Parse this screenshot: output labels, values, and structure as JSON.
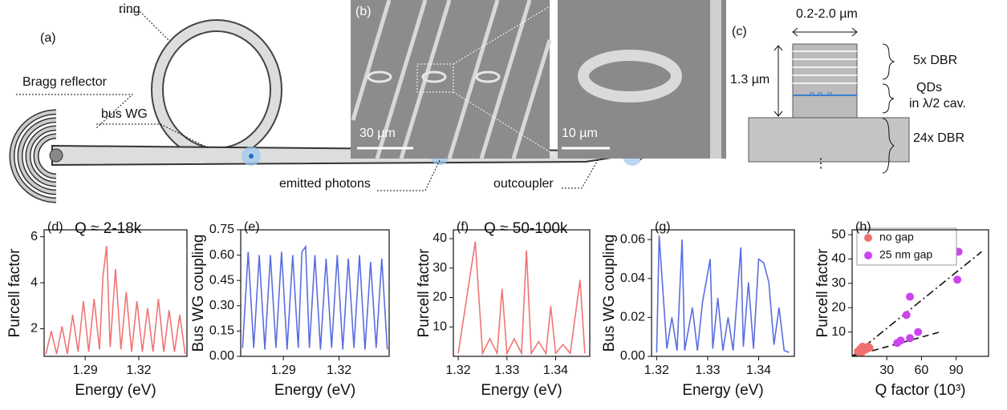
{
  "schematic": {
    "panel_a": "(a)",
    "ring": "ring",
    "bragg": "Bragg reflector",
    "bus": "bus WG",
    "photons": "emitted photons",
    "outcoupler": "outcoupler",
    "panel_b": "(b)",
    "scale1": "30 µm",
    "scale2": "10 µm",
    "panel_c": "(c)",
    "width": "0.2-2.0 µm",
    "height": "1.3 µm",
    "dbr_top": "5x DBR",
    "qds": "QDs",
    "cavity": "in λ/2 cav.",
    "dbr_bottom": "24x DBR",
    "dots": "⋮"
  },
  "chart_data": [
    {
      "type": "line",
      "panel_label": "(d)",
      "annotation": "Q ≈ 2-18k",
      "xlabel": "Energy (eV)",
      "ylabel": "Purcell factor",
      "color": "#f07474",
      "x": [
        1.268,
        1.271,
        1.274,
        1.277,
        1.28,
        1.283,
        1.286,
        1.289,
        1.292,
        1.295,
        1.298,
        1.3,
        1.302,
        1.304,
        1.307,
        1.31,
        1.313,
        1.316,
        1.319,
        1.322,
        1.325,
        1.328,
        1.331,
        1.334,
        1.337,
        1.34,
        1.343,
        1.346
      ],
      "values": [
        0.9,
        1.9,
        0.9,
        2.1,
        0.9,
        2.6,
        1.0,
        3.2,
        1.0,
        3.3,
        1.1,
        4.3,
        5.6,
        1.2,
        4.6,
        1.1,
        3.6,
        1.0,
        3.2,
        1.0,
        2.9,
        1.0,
        3.3,
        1.0,
        2.8,
        1.0,
        2.6,
        0.9
      ],
      "xlim": [
        1.267,
        1.347
      ],
      "xticks": [
        1.29,
        1.32
      ],
      "ylim": [
        0.8,
        6.3
      ],
      "yticks": [
        2,
        4,
        6
      ]
    },
    {
      "type": "line",
      "panel_label": "(e)",
      "xlabel": "Energy (eV)",
      "ylabel": "Bus WG coupling",
      "color": "#5a6ee0",
      "x": [
        1.268,
        1.271,
        1.274,
        1.277,
        1.28,
        1.283,
        1.286,
        1.289,
        1.292,
        1.295,
        1.298,
        1.3,
        1.302,
        1.304,
        1.307,
        1.31,
        1.313,
        1.316,
        1.319,
        1.322,
        1.325,
        1.328,
        1.331,
        1.334,
        1.337,
        1.34,
        1.343,
        1.346
      ],
      "values": [
        0.05,
        0.62,
        0.05,
        0.6,
        0.04,
        0.6,
        0.05,
        0.62,
        0.04,
        0.6,
        0.05,
        0.62,
        0.65,
        0.05,
        0.6,
        0.04,
        0.58,
        0.05,
        0.6,
        0.04,
        0.58,
        0.05,
        0.6,
        0.04,
        0.56,
        0.05,
        0.58,
        0.04
      ],
      "xlim": [
        1.267,
        1.347
      ],
      "xticks": [
        1.29,
        1.32
      ],
      "ylim": [
        0,
        0.75
      ],
      "yticks": [
        {
          "value": 0,
          "label": "0.00"
        },
        0.15,
        {
          "value": 0.3,
          "label": "0.30"
        },
        0.45,
        {
          "value": 0.6,
          "label": "0.60"
        },
        0.75
      ]
    },
    {
      "type": "line",
      "panel_label": "(f)",
      "annotation": "Q ≈ 50-100k",
      "xlabel": "Energy (eV)",
      "ylabel": "Purcell factor",
      "color": "#f07474",
      "x": [
        1.32,
        1.3235,
        1.325,
        1.3265,
        1.328,
        1.329,
        1.33,
        1.3315,
        1.333,
        1.334,
        1.335,
        1.3365,
        1.338,
        1.339,
        1.34,
        1.3415,
        1.343,
        1.345,
        1.346
      ],
      "values": [
        1,
        39,
        1,
        6,
        1,
        23,
        1,
        6,
        1,
        36,
        1,
        5,
        1,
        17,
        1,
        4,
        1,
        26,
        1
      ],
      "xlim": [
        1.319,
        1.347
      ],
      "xticks": [
        1.32,
        1.33,
        1.34
      ],
      "ylim": [
        0,
        43
      ],
      "yticks": [
        10,
        20,
        30,
        40
      ]
    },
    {
      "type": "line",
      "panel_label": "(g)",
      "xlabel": "Energy (eV)",
      "ylabel": "Bus WG coupling",
      "color": "#5a6ee0",
      "x": [
        1.32,
        1.3205,
        1.322,
        1.323,
        1.324,
        1.325,
        1.3255,
        1.327,
        1.328,
        1.329,
        1.3305,
        1.331,
        1.332,
        1.333,
        1.334,
        1.335,
        1.3365,
        1.337,
        1.338,
        1.339,
        1.34,
        1.341,
        1.342,
        1.343,
        1.344,
        1.345,
        1.346
      ],
      "values": [
        0.002,
        0.062,
        0.004,
        0.02,
        0.003,
        0.06,
        0.003,
        0.025,
        0.003,
        0.028,
        0.05,
        0.004,
        0.03,
        0.003,
        0.02,
        0.003,
        0.056,
        0.005,
        0.038,
        0.004,
        0.05,
        0.048,
        0.038,
        0.006,
        0.025,
        0.003,
        0.002
      ],
      "xlim": [
        1.319,
        1.347
      ],
      "xticks": [
        1.32,
        1.33,
        1.34
      ],
      "ylim": [
        0,
        0.065
      ],
      "yticks": [
        {
          "value": 0,
          "label": "0.00"
        },
        0.02,
        0.04,
        0.06
      ]
    },
    {
      "type": "scatter",
      "panel_label": "(h)",
      "xlabel": "Q factor (10³)",
      "ylabel": "Purcell factor",
      "legend": "upper left",
      "series": [
        {
          "name": "no gap",
          "color": "#f07070",
          "x": [
            5,
            7,
            8,
            9,
            10,
            12,
            14,
            15
          ],
          "values": [
            2,
            3,
            1.5,
            4,
            2.5,
            3,
            4,
            3.5
          ]
        },
        {
          "name": "25 nm gap",
          "color": "#cc44ee",
          "x": [
            92,
            91,
            50,
            47,
            57,
            50,
            42,
            39
          ],
          "values": [
            43,
            31.5,
            24.5,
            17,
            10,
            7.5,
            6.5,
            5.5
          ]
        }
      ],
      "fit_lines": [
        {
          "x": [
            0,
            112
          ],
          "values": [
            0,
            43
          ],
          "dash": "10 4 2 4"
        },
        {
          "x": [
            0,
            76
          ],
          "values": [
            0,
            10
          ],
          "dash": "8 5"
        }
      ],
      "xlim": [
        0,
        118
      ],
      "xticks": [
        30,
        60,
        90
      ],
      "ylim": [
        0,
        52
      ],
      "yticks": [
        10,
        20,
        30,
        40,
        50
      ]
    }
  ]
}
